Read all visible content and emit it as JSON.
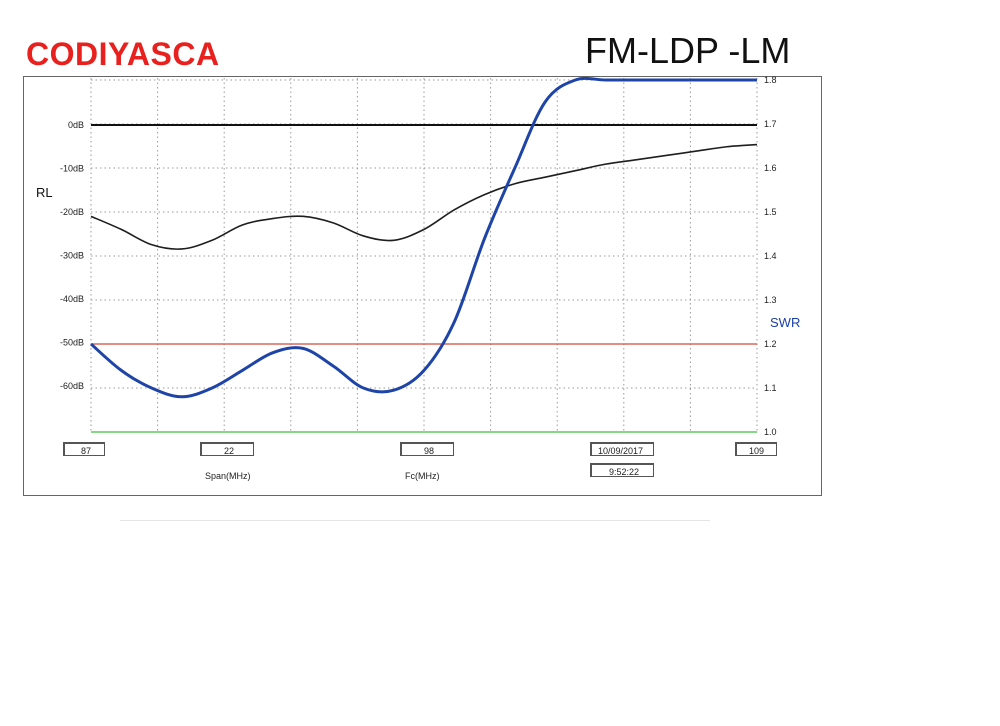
{
  "header": {
    "brand": "CODIYASCA",
    "model": "FM-LDP -LM"
  },
  "chart_data": {
    "type": "line",
    "left_axis": {
      "label": "RL",
      "ticks": [
        "0dB",
        "-10dB",
        "-20dB",
        "-30dB",
        "-40dB",
        "-50dB",
        "-60dB"
      ],
      "values": [
        0,
        -10,
        -20,
        -30,
        -40,
        -50,
        -60
      ],
      "range": [
        -70,
        10
      ]
    },
    "right_axis": {
      "label": "SWR",
      "ticks": [
        "1.0",
        "1.1",
        "1.2",
        "1.3",
        "1.4",
        "1.5",
        "1.6",
        "1.7",
        "1.8"
      ],
      "values": [
        1.0,
        1.1,
        1.2,
        1.3,
        1.4,
        1.5,
        1.6,
        1.7,
        1.8
      ],
      "range": [
        1.0,
        1.8
      ]
    },
    "x_range": [
      87,
      109
    ],
    "grid": true,
    "reference_lines": [
      {
        "axis": "rl",
        "value": 0,
        "color": "#111111"
      },
      {
        "axis": "swr",
        "value": 1.2,
        "color": "#d04a3a"
      },
      {
        "axis": "swr",
        "value": 1.0,
        "color": "#3cbf3c"
      }
    ],
    "series": [
      {
        "axis": "rl",
        "color": "#1e1e1e",
        "x": [
          87,
          88,
          89,
          90,
          91,
          92,
          93,
          94,
          95,
          96,
          97,
          98,
          99,
          100,
          101,
          102,
          103,
          104,
          105,
          106,
          107,
          108,
          109
        ],
        "y": [
          -21,
          -24,
          -27.5,
          -28.5,
          -26.5,
          -23,
          -21.5,
          -21,
          -22.5,
          -25.5,
          -26.5,
          -24,
          -19.5,
          -16,
          -13.5,
          -12,
          -10.5,
          -9,
          -8,
          -7,
          -6,
          -5,
          -4.5
        ]
      },
      {
        "axis": "swr",
        "color": "#1e44a8",
        "x": [
          87,
          88,
          89,
          90,
          91,
          92,
          93,
          94,
          95,
          96,
          97,
          98,
          99,
          100,
          101,
          102,
          103,
          104,
          105,
          106,
          107,
          108,
          109
        ],
        "y": [
          1.2,
          1.14,
          1.1,
          1.08,
          1.1,
          1.14,
          1.18,
          1.19,
          1.15,
          1.1,
          1.095,
          1.14,
          1.25,
          1.44,
          1.6,
          1.75,
          1.8,
          1.8,
          1.8,
          1.8,
          1.8,
          1.8,
          1.8
        ]
      }
    ]
  },
  "footer": {
    "start": "87",
    "span_value": "22",
    "span_label": "Span(MHz)",
    "center_value": "98",
    "center_label": "Fc(MHz)",
    "date": "10/09/2017",
    "time": "9:52:22",
    "stop": "109"
  }
}
